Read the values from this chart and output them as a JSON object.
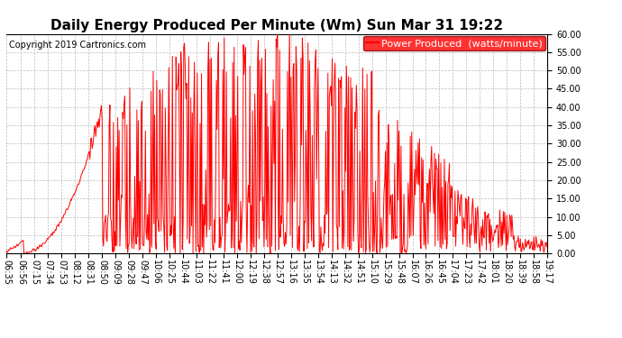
{
  "title": "Daily Energy Produced Per Minute (Wm) Sun Mar 31 19:22",
  "legend_label": "Power Produced  (watts/minute)",
  "copyright": "Copyright 2019 Cartronics.com",
  "line_color": "red",
  "background_color": "#ffffff",
  "grid_color": "#bbbbbb",
  "ylim": [
    0.0,
    60.0
  ],
  "yticks": [
    0.0,
    5.0,
    10.0,
    15.0,
    20.0,
    25.0,
    30.0,
    35.0,
    40.0,
    45.0,
    50.0,
    55.0,
    60.0
  ],
  "title_fontsize": 11,
  "copyright_fontsize": 7,
  "legend_fontsize": 8,
  "tick_fontsize": 7,
  "tick_labels": [
    "06:35",
    "06:56",
    "07:15",
    "07:34",
    "07:53",
    "08:12",
    "08:31",
    "08:50",
    "09:09",
    "09:28",
    "09:47",
    "10:06",
    "10:25",
    "10:44",
    "11:03",
    "11:22",
    "11:41",
    "12:00",
    "12:19",
    "12:38",
    "12:57",
    "13:16",
    "13:35",
    "13:54",
    "14:13",
    "14:32",
    "14:51",
    "15:10",
    "15:29",
    "15:48",
    "16:07",
    "16:26",
    "16:45",
    "17:04",
    "17:23",
    "17:42",
    "18:01",
    "18:20",
    "18:39",
    "18:58",
    "19:17"
  ]
}
